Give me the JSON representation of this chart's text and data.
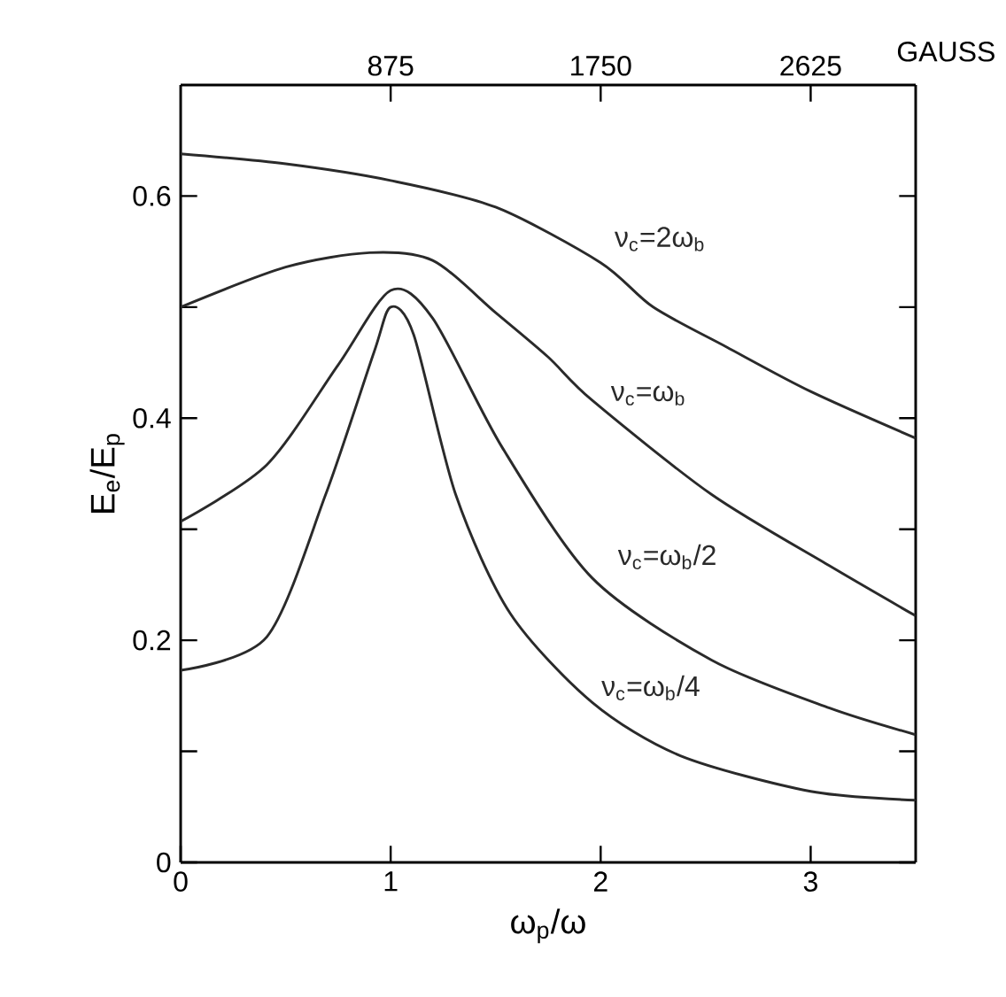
{
  "chart_data": {
    "type": "line",
    "xlabel": "ω$_{p}$/ω",
    "ylabel": "E$_{e}$/E$_{p}$",
    "x2label": "GAUSS",
    "xlim": [
      0,
      3.5
    ],
    "xticks": [
      0,
      1,
      2,
      3
    ],
    "x2lim": [
      0,
      3062.5
    ],
    "x2ticks": [
      875,
      1750,
      2625
    ],
    "ylim": [
      0,
      0.7
    ],
    "yticks": [
      0,
      {
        "value": 0.1,
        "label": null
      },
      0.2,
      {
        "value": 0.3,
        "label": null
      },
      0.4,
      {
        "value": 0.5,
        "label": null
      },
      0.6
    ],
    "marker": "none",
    "line_style": "solid",
    "series": [
      {
        "name": "ν$_{c}$=2ω$_{b}$",
        "color": "#2a2a2a",
        "x": [
          0,
          0.5,
          1,
          1.5,
          2,
          2.25,
          2.6,
          3,
          3.5
        ],
        "values": [
          0.638,
          0.629,
          0.614,
          0.59,
          0.54,
          0.5,
          0.464,
          0.424,
          0.382
        ]
      },
      {
        "name": "ν$_{c}$=ω$_{b}$",
        "color": "#2a2a2a",
        "x": [
          0,
          0.5,
          0.9,
          1.2,
          1.5,
          1.75,
          1.96,
          2.53,
          3.09,
          3.5
        ],
        "values": [
          0.5,
          0.536,
          0.549,
          0.542,
          0.495,
          0.455,
          0.416,
          0.331,
          0.267,
          0.222
        ]
      },
      {
        "name": "ν$_{c}$=ω$_{b}$/2",
        "color": "#2a2a2a",
        "x": [
          0,
          0.41,
          0.75,
          1,
          1.2,
          1.53,
          1.96,
          2.53,
          3.09,
          3.5
        ],
        "values": [
          0.307,
          0.358,
          0.448,
          0.515,
          0.49,
          0.374,
          0.256,
          0.182,
          0.139,
          0.115
        ]
      },
      {
        "name": "ν$_{c}$=ω$_{b}$/4",
        "color": "#2a2a2a",
        "x": [
          0,
          0.41,
          0.69,
          0.92,
          1,
          1.11,
          1.31,
          1.57,
          1.96,
          2.38,
          3,
          3.5
        ],
        "values": [
          0.173,
          0.203,
          0.331,
          0.459,
          0.5,
          0.475,
          0.331,
          0.224,
          0.144,
          0.096,
          0.064,
          0.056
        ]
      }
    ]
  }
}
